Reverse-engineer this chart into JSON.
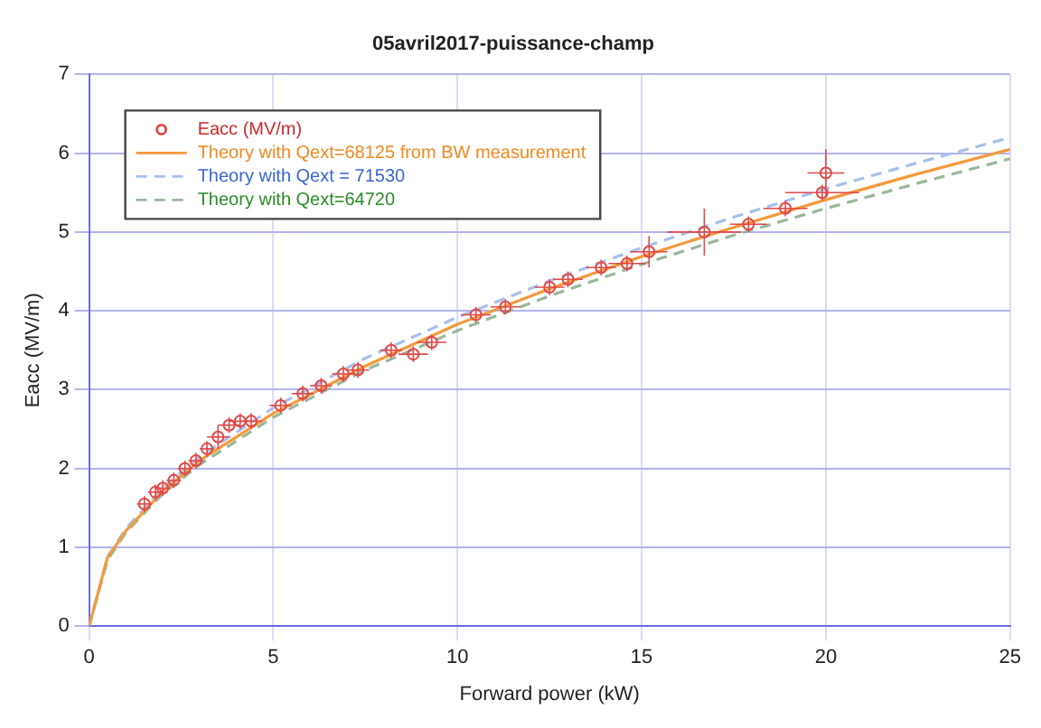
{
  "chart_data": {
    "type": "line",
    "title": "05avril2017-puissance-champ",
    "xlabel": "Forward power (kW)",
    "ylabel": "Eacc (MV/m)",
    "xlim": [
      0,
      25
    ],
    "xticks": [
      0,
      5,
      10,
      15,
      20,
      25
    ],
    "ylim": [
      0,
      7
    ],
    "yticks": [
      0,
      1,
      2,
      3,
      4,
      5,
      6,
      7
    ],
    "grid": true,
    "legend": "top left",
    "series": [
      {
        "name": "Eacc (MV/m)",
        "type": "scatter",
        "marker": "circle",
        "color": "#e04848",
        "x": [
          1.5,
          1.8,
          2.0,
          2.3,
          2.6,
          2.9,
          3.2,
          3.5,
          3.8,
          4.1,
          4.4,
          5.2,
          5.8,
          6.3,
          6.9,
          7.3,
          8.2,
          8.8,
          9.3,
          10.5,
          11.3,
          12.5,
          13.0,
          13.9,
          14.6,
          15.2,
          16.7,
          17.9,
          18.9,
          19.9,
          20.0
        ],
        "values": [
          1.55,
          1.7,
          1.75,
          1.85,
          2.0,
          2.1,
          2.25,
          2.4,
          2.55,
          2.6,
          2.6,
          2.8,
          2.95,
          3.05,
          3.2,
          3.25,
          3.5,
          3.45,
          3.6,
          3.95,
          4.05,
          4.3,
          4.4,
          4.55,
          4.6,
          4.75,
          5.0,
          5.1,
          5.3,
          5.5,
          5.75
        ],
        "errors": [
          0.1,
          0.1,
          0.1,
          0.1,
          0.1,
          0.1,
          0.1,
          0.15,
          0.1,
          0.1,
          0.1,
          0.1,
          0.1,
          0.1,
          0.1,
          0.1,
          0.1,
          0.1,
          0.1,
          0.1,
          0.1,
          0.1,
          0.1,
          0.1,
          0.1,
          0.2,
          0.3,
          0.1,
          0.1,
          0.1,
          0.3
        ],
        "xerrors": [
          0.2,
          0.2,
          0.2,
          0.2,
          0.2,
          0.2,
          0.2,
          0.3,
          0.3,
          0.3,
          0.3,
          0.3,
          0.3,
          0.3,
          0.3,
          0.3,
          0.3,
          0.4,
          0.4,
          0.4,
          0.4,
          0.4,
          0.4,
          0.4,
          0.5,
          0.5,
          1.0,
          0.5,
          0.6,
          1.0,
          0.5
        ]
      },
      {
        "name": "Theory with Qext=68125 from BW measurement",
        "type": "line",
        "marker": "none",
        "line_style": "solid",
        "color": "#f39a3c",
        "x": [
          0,
          0.5,
          1,
          2,
          3,
          5,
          7.5,
          10,
          12.5,
          15,
          17.5,
          20,
          22.5,
          25
        ],
        "values": [
          0,
          0.87,
          1.21,
          1.71,
          2.1,
          2.7,
          3.3,
          3.83,
          4.28,
          4.69,
          5.06,
          5.41,
          5.74,
          6.05
        ]
      },
      {
        "name": "Theory with Qext = 71530",
        "type": "line",
        "marker": "none",
        "line_style": "dashed",
        "color": "#a8c0ec",
        "x": [
          0,
          0.5,
          1,
          2,
          3,
          5,
          7.5,
          10,
          12.5,
          15,
          17.5,
          20,
          22.5,
          25
        ],
        "values": [
          0,
          0.88,
          1.24,
          1.75,
          2.15,
          2.77,
          3.4,
          3.92,
          4.38,
          4.8,
          5.19,
          5.55,
          5.88,
          6.2
        ]
      },
      {
        "name": "Theory with Qext=64720",
        "type": "line",
        "marker": "none",
        "line_style": "dashed",
        "color": "#9ab89a",
        "x": [
          0,
          0.5,
          1,
          2,
          3,
          5,
          7.5,
          10,
          12.5,
          15,
          17.5,
          20,
          22.5,
          25
        ],
        "values": [
          0,
          0.84,
          1.19,
          1.68,
          2.05,
          2.65,
          3.25,
          3.75,
          4.19,
          4.59,
          4.96,
          5.3,
          5.62,
          5.93
        ]
      }
    ]
  }
}
